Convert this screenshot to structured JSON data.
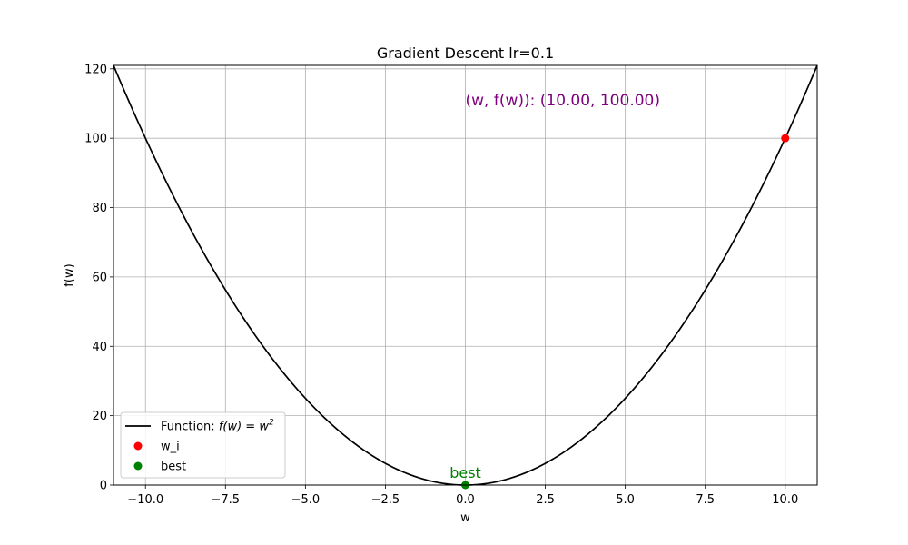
{
  "chart_data": {
    "type": "line",
    "title": "Gradient Descent lr=0.1",
    "xlabel": "w",
    "ylabel": "f(w)",
    "xlim": [
      -11,
      11
    ],
    "ylim": [
      0,
      121
    ],
    "x_ticks": [
      -10.0,
      -7.5,
      -5.0,
      -2.5,
      0.0,
      2.5,
      5.0,
      7.5,
      10.0
    ],
    "x_tick_labels": [
      "−10.0",
      "−7.5",
      "−5.0",
      "−2.5",
      "0.0",
      "2.5",
      "5.0",
      "7.5",
      "10.0"
    ],
    "y_ticks": [
      0,
      20,
      40,
      60,
      80,
      100,
      120
    ],
    "y_tick_labels": [
      "0",
      "20",
      "40",
      "60",
      "80",
      "100",
      "120"
    ],
    "grid": true,
    "legend_placement": "lower-left",
    "series": [
      {
        "name": "Function: f(w) = w²",
        "kind": "line",
        "function": "w^2",
        "color": "#000000"
      },
      {
        "name": "w_i",
        "kind": "scatter",
        "points": [
          {
            "x": 10.0,
            "y": 100.0
          }
        ],
        "color": "#ff0000"
      },
      {
        "name": "best",
        "kind": "scatter",
        "points": [
          {
            "x": 0.0,
            "y": 0.0
          }
        ],
        "color": "#008000"
      }
    ],
    "annotations": [
      {
        "text": "(w, f(w)): (10.00, 100.00)",
        "x": 0.0,
        "y": 110.0,
        "color": "#800080"
      },
      {
        "text": "best",
        "x": 0.0,
        "y": 0.0,
        "color": "#008000"
      }
    ],
    "legend": {
      "entries": [
        {
          "label_prefix": "Function: ",
          "label_math": "f(w) = w",
          "label_sup": "2",
          "color": "#000000",
          "marker": "line"
        },
        {
          "label": "w_i",
          "color": "#ff0000",
          "marker": "dot"
        },
        {
          "label": "best",
          "color": "#008000",
          "marker": "dot"
        }
      ]
    }
  }
}
